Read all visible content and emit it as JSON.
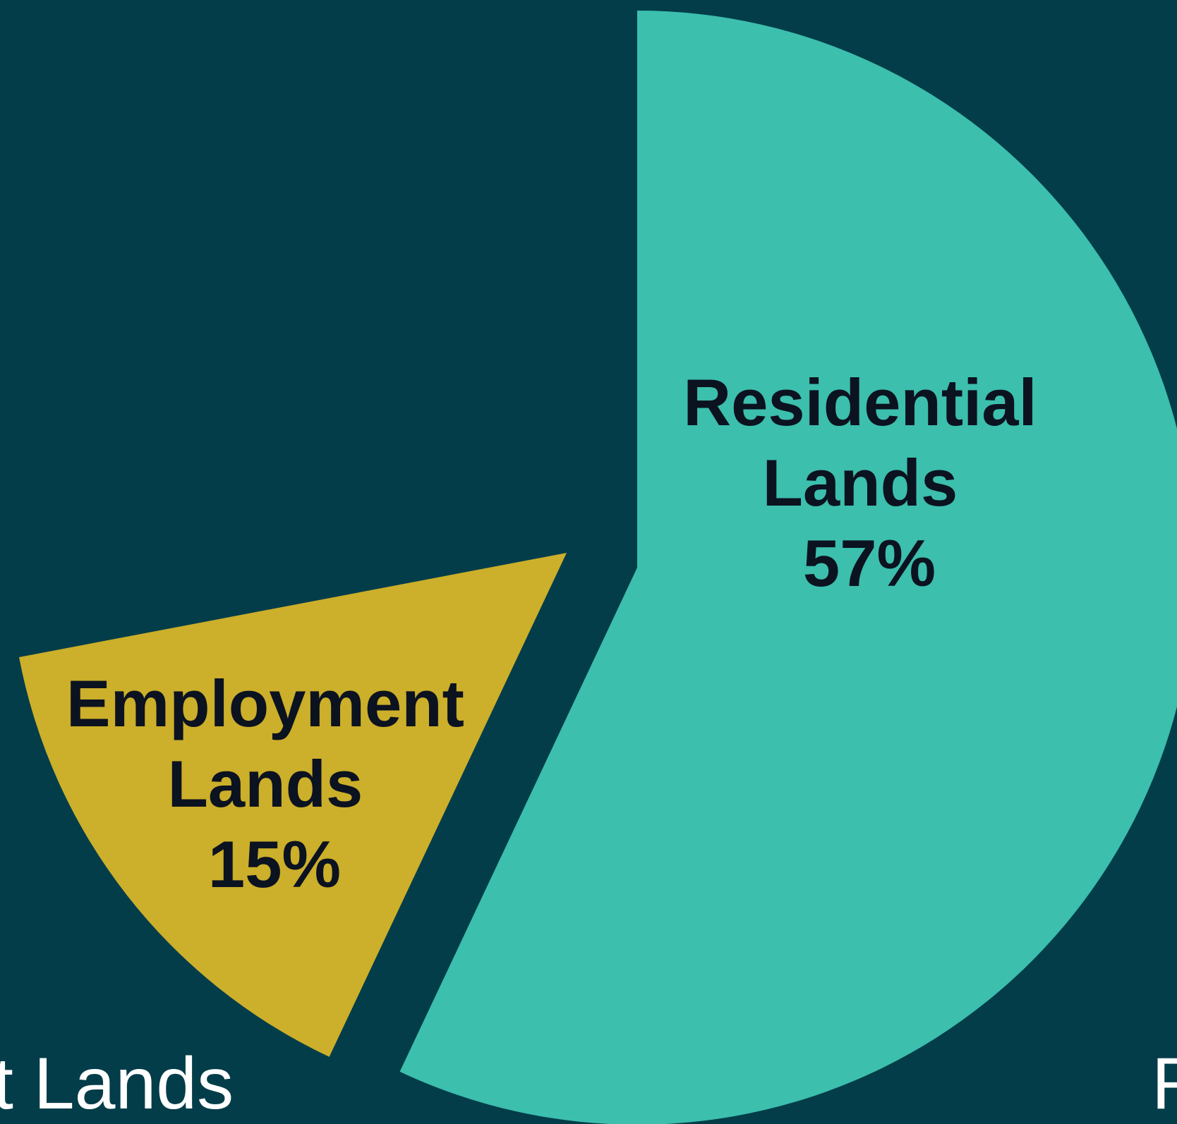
{
  "chart_data": {
    "type": "pie",
    "background": "#033d4a",
    "slices": [
      {
        "label_lines": [
          "Residential",
          "Lands",
          "57%"
        ],
        "value": 57,
        "color": "#3cbfad"
      },
      {
        "label_lines": [
          "Employment",
          "Lands",
          "15%"
        ],
        "value": 15,
        "color": "#ccaf2a"
      }
    ],
    "edge_labels": [
      "t Lands",
      "R"
    ]
  }
}
